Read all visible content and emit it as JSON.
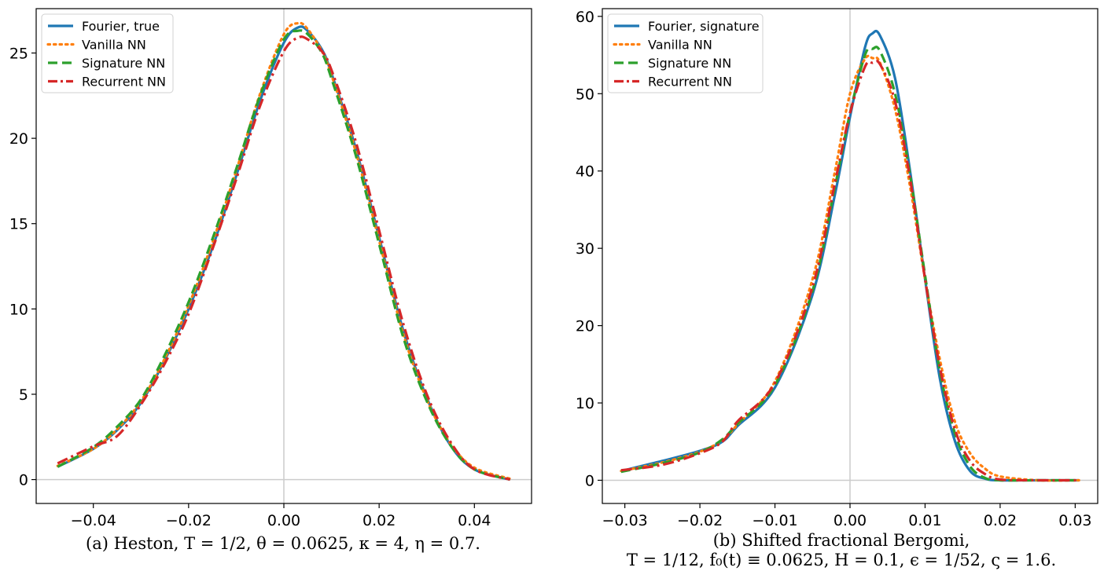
{
  "chart_data": [
    {
      "type": "line",
      "caption": "(a) Heston, T = 1/2, θ = 0.0625, κ = 4, η = 0.7.",
      "xlim": [
        -0.052,
        0.052
      ],
      "ylim": [
        -1.4,
        27.6
      ],
      "xticks": [
        -0.04,
        -0.02,
        0.0,
        0.02,
        0.04
      ],
      "xtick_labels": [
        "−0.04",
        "−0.02",
        "0.00",
        "0.02",
        "0.04"
      ],
      "yticks": [
        0,
        5,
        10,
        15,
        20,
        25
      ],
      "ytick_labels": [
        "0",
        "5",
        "10",
        "15",
        "20",
        "25"
      ],
      "legend_position": "upper-left",
      "grid": false,
      "series": [
        {
          "name": "Fourier, true",
          "color": "#1f77b4",
          "dash": "solid",
          "x": [
            -0.0475,
            -0.04,
            -0.035,
            -0.03,
            -0.025,
            -0.02,
            -0.015,
            -0.01,
            -0.005,
            0.0,
            0.003,
            0.005,
            0.008,
            0.01,
            0.015,
            0.02,
            0.025,
            0.03,
            0.035,
            0.04,
            0.0475
          ],
          "y": [
            0.75,
            1.8,
            2.9,
            4.5,
            7.0,
            10.0,
            13.6,
            17.8,
            22.2,
            25.6,
            26.5,
            26.3,
            25.2,
            23.8,
            19.5,
            14.2,
            8.8,
            4.8,
            2.0,
            0.6,
            0.0
          ]
        },
        {
          "name": "Vanilla NN",
          "color": "#ff7f0e",
          "dash": "dotted",
          "x": [
            -0.0475,
            -0.04,
            -0.035,
            -0.03,
            -0.025,
            -0.02,
            -0.015,
            -0.01,
            -0.005,
            0.0,
            0.003,
            0.005,
            0.008,
            0.01,
            0.015,
            0.02,
            0.025,
            0.03,
            0.035,
            0.04,
            0.0475
          ],
          "y": [
            0.8,
            1.8,
            2.95,
            4.6,
            7.1,
            10.2,
            13.9,
            18.1,
            22.6,
            26.1,
            26.75,
            26.4,
            25.1,
            23.7,
            19.3,
            14.0,
            8.6,
            4.7,
            2.1,
            0.7,
            0.05
          ]
        },
        {
          "name": "Signature NN",
          "color": "#2ca02c",
          "dash": "dashed",
          "x": [
            -0.0475,
            -0.04,
            -0.035,
            -0.03,
            -0.025,
            -0.02,
            -0.015,
            -0.01,
            -0.005,
            0.0,
            0.003,
            0.005,
            0.008,
            0.01,
            0.015,
            0.02,
            0.025,
            0.03,
            0.035,
            0.04,
            0.0475
          ],
          "y": [
            0.75,
            1.9,
            3.1,
            4.7,
            7.3,
            10.4,
            14.1,
            18.2,
            22.5,
            25.8,
            26.3,
            26.1,
            25.0,
            23.5,
            19.1,
            13.8,
            8.4,
            4.6,
            2.0,
            0.6,
            0.0
          ]
        },
        {
          "name": "Recurrent NN",
          "color": "#d62728",
          "dash": "dashdot",
          "x": [
            -0.0475,
            -0.04,
            -0.035,
            -0.03,
            -0.025,
            -0.02,
            -0.015,
            -0.01,
            -0.005,
            0.0,
            0.003,
            0.005,
            0.008,
            0.01,
            0.015,
            0.02,
            0.025,
            0.03,
            0.035,
            0.04,
            0.0475
          ],
          "y": [
            0.95,
            1.95,
            2.55,
            4.4,
            6.8,
            9.7,
            13.5,
            17.6,
            21.9,
            25.1,
            25.9,
            25.8,
            25.1,
            24.0,
            19.9,
            14.6,
            9.2,
            5.0,
            2.2,
            0.6,
            0.0
          ]
        }
      ]
    },
    {
      "type": "line",
      "caption_line1": "(b) Shifted fractional Bergomi,",
      "caption_line2": "T = 1/12, f₀(t) ≡ 0.0625, H = 0.1, ϵ = 1/52, ς = 1.6.",
      "xlim": [
        -0.033,
        0.033
      ],
      "ylim": [
        -3.0,
        61.0
      ],
      "xticks": [
        -0.03,
        -0.02,
        -0.01,
        0.0,
        0.01,
        0.02,
        0.03
      ],
      "xtick_labels": [
        "−0.03",
        "−0.02",
        "−0.01",
        "0.00",
        "0.01",
        "0.02",
        "0.03"
      ],
      "yticks": [
        0,
        10,
        20,
        30,
        40,
        50,
        60
      ],
      "ytick_labels": [
        "0",
        "10",
        "20",
        "30",
        "40",
        "50",
        "60"
      ],
      "legend_position": "upper-left",
      "grid": false,
      "series": [
        {
          "name": "Fourier, signature",
          "color": "#1f77b4",
          "dash": "solid",
          "x": [
            -0.0305,
            -0.025,
            -0.02,
            -0.017,
            -0.015,
            -0.01,
            -0.005,
            -0.002,
            0.0,
            0.002,
            0.003,
            0.004,
            0.006,
            0.008,
            0.01,
            0.012,
            0.014,
            0.016,
            0.018,
            0.02,
            0.025,
            0.0305
          ],
          "y": [
            1.2,
            2.5,
            3.8,
            5.0,
            7.0,
            12.0,
            24.0,
            37.0,
            47.0,
            56.0,
            57.8,
            57.5,
            52.0,
            40.0,
            26.0,
            13.0,
            5.0,
            1.2,
            0.2,
            0.0,
            0.0,
            0.0
          ]
        },
        {
          "name": "Vanilla NN",
          "color": "#ff7f0e",
          "dash": "dotted",
          "x": [
            -0.0305,
            -0.025,
            -0.02,
            -0.017,
            -0.015,
            -0.01,
            -0.005,
            -0.002,
            0.0,
            0.002,
            0.003,
            0.004,
            0.006,
            0.008,
            0.01,
            0.012,
            0.014,
            0.016,
            0.018,
            0.02,
            0.025,
            0.0305
          ],
          "y": [
            1.2,
            2.3,
            3.7,
            5.2,
            7.2,
            12.8,
            26.0,
            40.0,
            50.0,
            54.5,
            54.6,
            54.0,
            48.0,
            38.0,
            26.0,
            15.5,
            7.5,
            3.5,
            1.5,
            0.5,
            0.0,
            0.0
          ]
        },
        {
          "name": "Signature NN",
          "color": "#2ca02c",
          "dash": "dashed",
          "x": [
            -0.0305,
            -0.025,
            -0.02,
            -0.017,
            -0.015,
            -0.01,
            -0.005,
            -0.002,
            0.0,
            0.002,
            0.003,
            0.004,
            0.006,
            0.008,
            0.01,
            0.012,
            0.014,
            0.016,
            0.018,
            0.02,
            0.025,
            0.0305
          ],
          "y": [
            1.1,
            2.2,
            3.6,
            5.3,
            7.3,
            12.3,
            24.5,
            38.0,
            47.5,
            55.0,
            55.8,
            55.5,
            50.0,
            39.5,
            26.5,
            14.0,
            6.0,
            1.8,
            0.3,
            0.0,
            0.0,
            0.0
          ]
        },
        {
          "name": "Recurrent NN",
          "color": "#d62728",
          "dash": "dashdot",
          "x": [
            -0.0305,
            -0.025,
            -0.02,
            -0.017,
            -0.015,
            -0.01,
            -0.005,
            -0.002,
            0.0,
            0.002,
            0.003,
            0.004,
            0.006,
            0.008,
            0.01,
            0.012,
            0.014,
            0.016,
            0.018,
            0.02,
            0.025,
            0.0305
          ],
          "y": [
            1.3,
            2.0,
            3.5,
            5.0,
            7.6,
            12.6,
            25.0,
            38.5,
            47.5,
            53.5,
            54.0,
            53.8,
            49.0,
            39.0,
            26.0,
            14.5,
            6.5,
            2.5,
            0.8,
            0.1,
            0.0,
            0.0
          ]
        }
      ]
    }
  ]
}
